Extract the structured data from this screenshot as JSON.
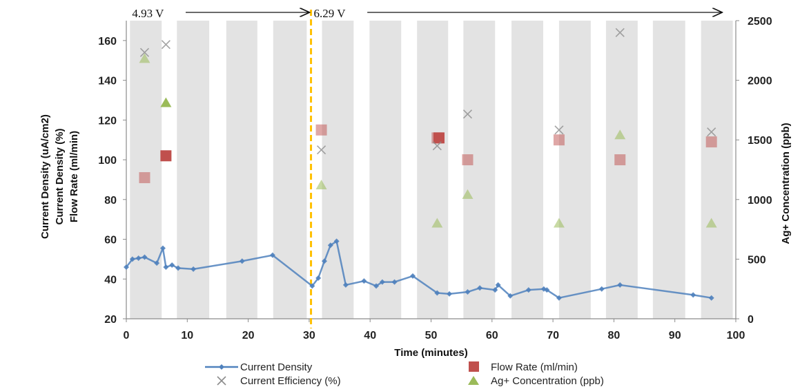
{
  "chart_data": {
    "type": "scatter",
    "xlabel": "Time (minutes)",
    "ylabel_left_lines": [
      "Current Density (uA/cm2)",
      "Current Density (%)",
      "Flow Rate (ml/min)"
    ],
    "ylabel_right": "Ag+ Concentration (ppb)",
    "xlim": [
      0,
      100
    ],
    "ylim_left": [
      20,
      170
    ],
    "ylim_right": [
      0,
      2500
    ],
    "x_ticks": [
      0,
      10,
      20,
      30,
      40,
      50,
      60,
      70,
      80,
      90,
      100
    ],
    "y_ticks_left": [
      20,
      40,
      60,
      80,
      100,
      120,
      140,
      160
    ],
    "y_ticks_right": [
      0,
      500,
      1000,
      1500,
      2000,
      2500
    ],
    "grid": false,
    "legend_position": "bottom",
    "voltage_annotations": [
      {
        "label": "4.93 V",
        "x_start": 0.5,
        "x_end": 30.3
      },
      {
        "label": "6.29 V",
        "x_start": 30.3,
        "x_end": 98
      }
    ],
    "voltage_change_x": 30.3,
    "shaded_bands_minutes": [
      [
        0.6,
        5.8
      ],
      [
        8.3,
        13.6
      ],
      [
        16.4,
        21.5
      ],
      [
        24.1,
        29.6
      ],
      [
        32.1,
        37.3
      ],
      [
        39.9,
        45.1
      ],
      [
        47.7,
        52.8
      ],
      [
        55.3,
        60.5
      ],
      [
        63.2,
        68.4
      ],
      [
        71.0,
        76.2
      ],
      [
        78.7,
        83.9
      ],
      [
        86.4,
        91.7
      ],
      [
        94.3,
        99.5
      ]
    ],
    "series": [
      {
        "name": "Current Density",
        "axis": "left",
        "style": "line",
        "color": "#4f81bd",
        "x": [
          0,
          1,
          2,
          3,
          5,
          6,
          6.5,
          7.5,
          8.5,
          11,
          19,
          24,
          30.5,
          31.5,
          32.5,
          33.5,
          34.5,
          36,
          39,
          41,
          42,
          44,
          47,
          51,
          53,
          56,
          58,
          60.5,
          61,
          63,
          66,
          68.5,
          69,
          71,
          78,
          81,
          93,
          96
        ],
        "y": [
          46,
          50,
          50.5,
          51,
          48,
          55.5,
          46,
          47,
          45.5,
          45,
          49,
          52,
          36.5,
          40.5,
          49,
          57,
          59,
          37,
          39,
          36.5,
          38.5,
          38.5,
          41.5,
          33,
          32.5,
          33.5,
          35.5,
          34.5,
          37,
          31.5,
          34.5,
          35,
          34.5,
          30.5,
          35,
          37,
          32,
          30.5
        ]
      },
      {
        "name": "Flow Rate (ml/min)",
        "axis": "left",
        "style": "square",
        "color": "#c0504d",
        "x": [
          3,
          6.5,
          32,
          51,
          51.3,
          56,
          71,
          81,
          96
        ],
        "y": [
          91,
          102,
          115,
          111,
          111,
          100,
          110,
          100,
          109
        ]
      },
      {
        "name": "Current Efficiency (%)",
        "axis": "left",
        "style": "x",
        "color": "#8c8c8c",
        "x": [
          3,
          6.5,
          32,
          51,
          56,
          71,
          81,
          96
        ],
        "y": [
          154,
          158,
          105,
          107,
          123,
          115,
          164,
          114
        ]
      },
      {
        "name": "Ag+ Concentration (ppb)",
        "axis": "right",
        "style": "triangle",
        "color": "#9bbb59",
        "x": [
          3,
          6.5,
          32,
          51,
          56,
          71,
          81,
          96
        ],
        "y": [
          2180,
          1810,
          1120,
          800,
          1040,
          800,
          1540,
          800
        ]
      }
    ]
  }
}
